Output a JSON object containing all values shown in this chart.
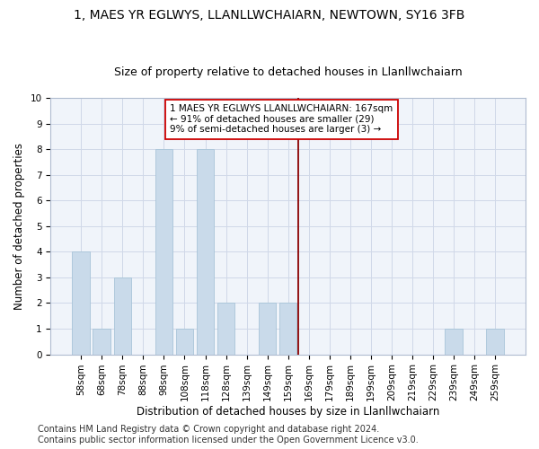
{
  "title": "1, MAES YR EGLWYS, LLANLLWCHAIARN, NEWTOWN, SY16 3FB",
  "subtitle": "Size of property relative to detached houses in Llanllwchaiarn",
  "xlabel": "Distribution of detached houses by size in Llanllwchaiarn",
  "ylabel": "Number of detached properties",
  "categories": [
    "58sqm",
    "68sqm",
    "78sqm",
    "88sqm",
    "98sqm",
    "108sqm",
    "118sqm",
    "128sqm",
    "139sqm",
    "149sqm",
    "159sqm",
    "169sqm",
    "179sqm",
    "189sqm",
    "199sqm",
    "209sqm",
    "219sqm",
    "229sqm",
    "239sqm",
    "249sqm",
    "259sqm"
  ],
  "values": [
    4,
    1,
    3,
    0,
    8,
    1,
    8,
    2,
    0,
    2,
    2,
    0,
    0,
    0,
    0,
    0,
    0,
    0,
    1,
    0,
    1
  ],
  "bar_color": "#c9daea",
  "bar_edge_color": "#a8c4d8",
  "grid_color": "#d0d8e8",
  "vline_color": "#8b0000",
  "annotation_text": "1 MAES YR EGLWYS LLANLLWCHAIARN: 167sqm\n← 91% of detached houses are smaller (29)\n9% of semi-detached houses are larger (3) →",
  "annotation_box_color": "#ffffff",
  "annotation_box_edge": "#cc0000",
  "ylim": [
    0,
    10
  ],
  "yticks": [
    0,
    1,
    2,
    3,
    4,
    5,
    6,
    7,
    8,
    9,
    10
  ],
  "footer1": "Contains HM Land Registry data © Crown copyright and database right 2024.",
  "footer2": "Contains public sector information licensed under the Open Government Licence v3.0.",
  "title_fontsize": 10,
  "subtitle_fontsize": 9,
  "axis_label_fontsize": 8.5,
  "tick_fontsize": 7.5,
  "footer_fontsize": 7
}
